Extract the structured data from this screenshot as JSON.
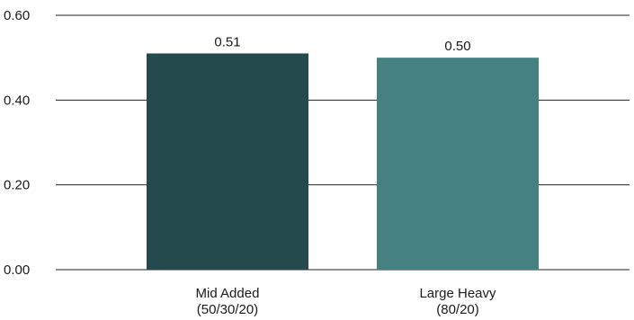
{
  "chart_data": {
    "type": "bar",
    "title": "",
    "xlabel": "",
    "ylabel": "",
    "ylim": [
      0,
      0.6
    ],
    "yticks": [
      0.0,
      0.2,
      0.4,
      0.6
    ],
    "ytick_labels": [
      "0.00",
      "0.20",
      "0.40",
      "0.60"
    ],
    "grid": true,
    "categories": [
      [
        "Mid Added",
        "(50/30/20)"
      ],
      [
        "Large Heavy",
        "(80/20)"
      ]
    ],
    "values": [
      0.51,
      0.5
    ],
    "data_labels": [
      "0.51",
      "0.50"
    ],
    "colors": [
      "#244a4d",
      "#468182"
    ]
  }
}
